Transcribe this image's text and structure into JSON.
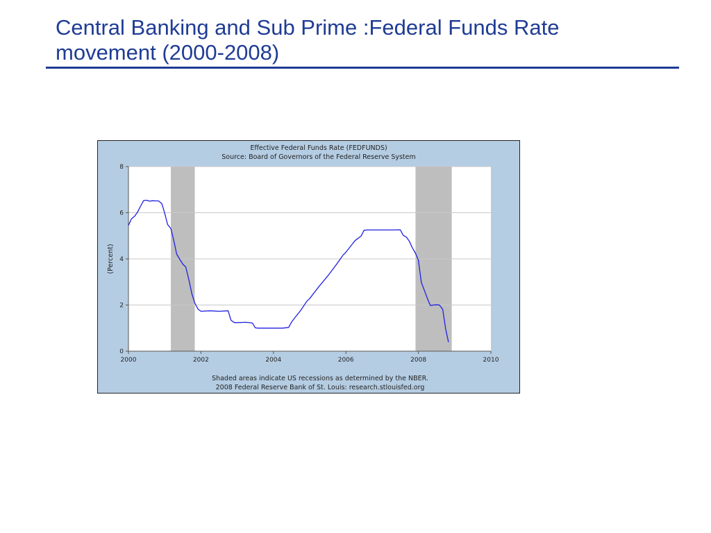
{
  "slide": {
    "title_line1": "Central Banking and Sub Prime :Federal Funds Rate",
    "title_line2": "movement (2000-2008)"
  },
  "chart_data": {
    "type": "line",
    "title": "Effective Federal Funds Rate (FEDFUNDS)",
    "subtitle": "Source: Board of Governors of the Federal Reserve System",
    "ylabel": "(Percent)",
    "xlabel": "",
    "footnote_line1": "Shaded areas indicate US recessions as determined by the NBER.",
    "footnote_line2": "2008 Federal Reserve Bank of St. Louis: research.stlouisfed.org",
    "xlim": [
      2000,
      2010
    ],
    "ylim": [
      0,
      8
    ],
    "x_ticks": [
      2000,
      2002,
      2004,
      2006,
      2008,
      2010
    ],
    "y_ticks": [
      0,
      2,
      4,
      6,
      8
    ],
    "grid": true,
    "colors": {
      "line": "#1f1fe0",
      "recession": "#bebebe",
      "plot_bg": "#ffffff",
      "frame_bg": "#b5cde3"
    },
    "recessions": [
      {
        "start": 2001.17,
        "end": 2001.83
      },
      {
        "start": 2007.92,
        "end": 2008.92
      }
    ],
    "series": [
      {
        "name": "FEDFUNDS",
        "x": [
          2000.0,
          2000.08,
          2000.17,
          2000.25,
          2000.33,
          2000.42,
          2000.5,
          2000.58,
          2000.67,
          2000.75,
          2000.83,
          2000.92,
          2001.0,
          2001.08,
          2001.17,
          2001.25,
          2001.33,
          2001.42,
          2001.5,
          2001.58,
          2001.67,
          2001.75,
          2001.83,
          2001.92,
          2002.0,
          2002.25,
          2002.5,
          2002.75,
          2002.83,
          2002.92,
          2003.0,
          2003.25,
          2003.42,
          2003.5,
          2003.58,
          2003.75,
          2004.0,
          2004.25,
          2004.42,
          2004.5,
          2004.58,
          2004.75,
          2004.92,
          2005.0,
          2005.25,
          2005.5,
          2005.75,
          2005.92,
          2006.0,
          2006.25,
          2006.42,
          2006.5,
          2006.58,
          2006.75,
          2007.0,
          2007.25,
          2007.5,
          2007.58,
          2007.67,
          2007.75,
          2007.83,
          2007.92,
          2008.0,
          2008.08,
          2008.17,
          2008.25,
          2008.33,
          2008.42,
          2008.5,
          2008.58,
          2008.67,
          2008.75,
          2008.83
        ],
        "values": [
          5.45,
          5.73,
          5.85,
          6.02,
          6.27,
          6.53,
          6.54,
          6.5,
          6.52,
          6.51,
          6.51,
          6.4,
          5.98,
          5.49,
          5.31,
          4.8,
          4.21,
          3.97,
          3.77,
          3.65,
          3.07,
          2.49,
          2.09,
          1.82,
          1.73,
          1.75,
          1.73,
          1.75,
          1.34,
          1.24,
          1.24,
          1.25,
          1.22,
          1.01,
          1.0,
          1.0,
          1.0,
          1.0,
          1.03,
          1.26,
          1.43,
          1.76,
          2.16,
          2.28,
          2.79,
          3.26,
          3.78,
          4.16,
          4.29,
          4.79,
          4.99,
          5.24,
          5.25,
          5.25,
          5.25,
          5.25,
          5.26,
          5.02,
          4.94,
          4.76,
          4.49,
          4.24,
          3.94,
          2.98,
          2.61,
          2.28,
          1.98,
          2.0,
          2.01,
          2.0,
          1.81,
          0.97,
          0.39
        ]
      }
    ]
  }
}
